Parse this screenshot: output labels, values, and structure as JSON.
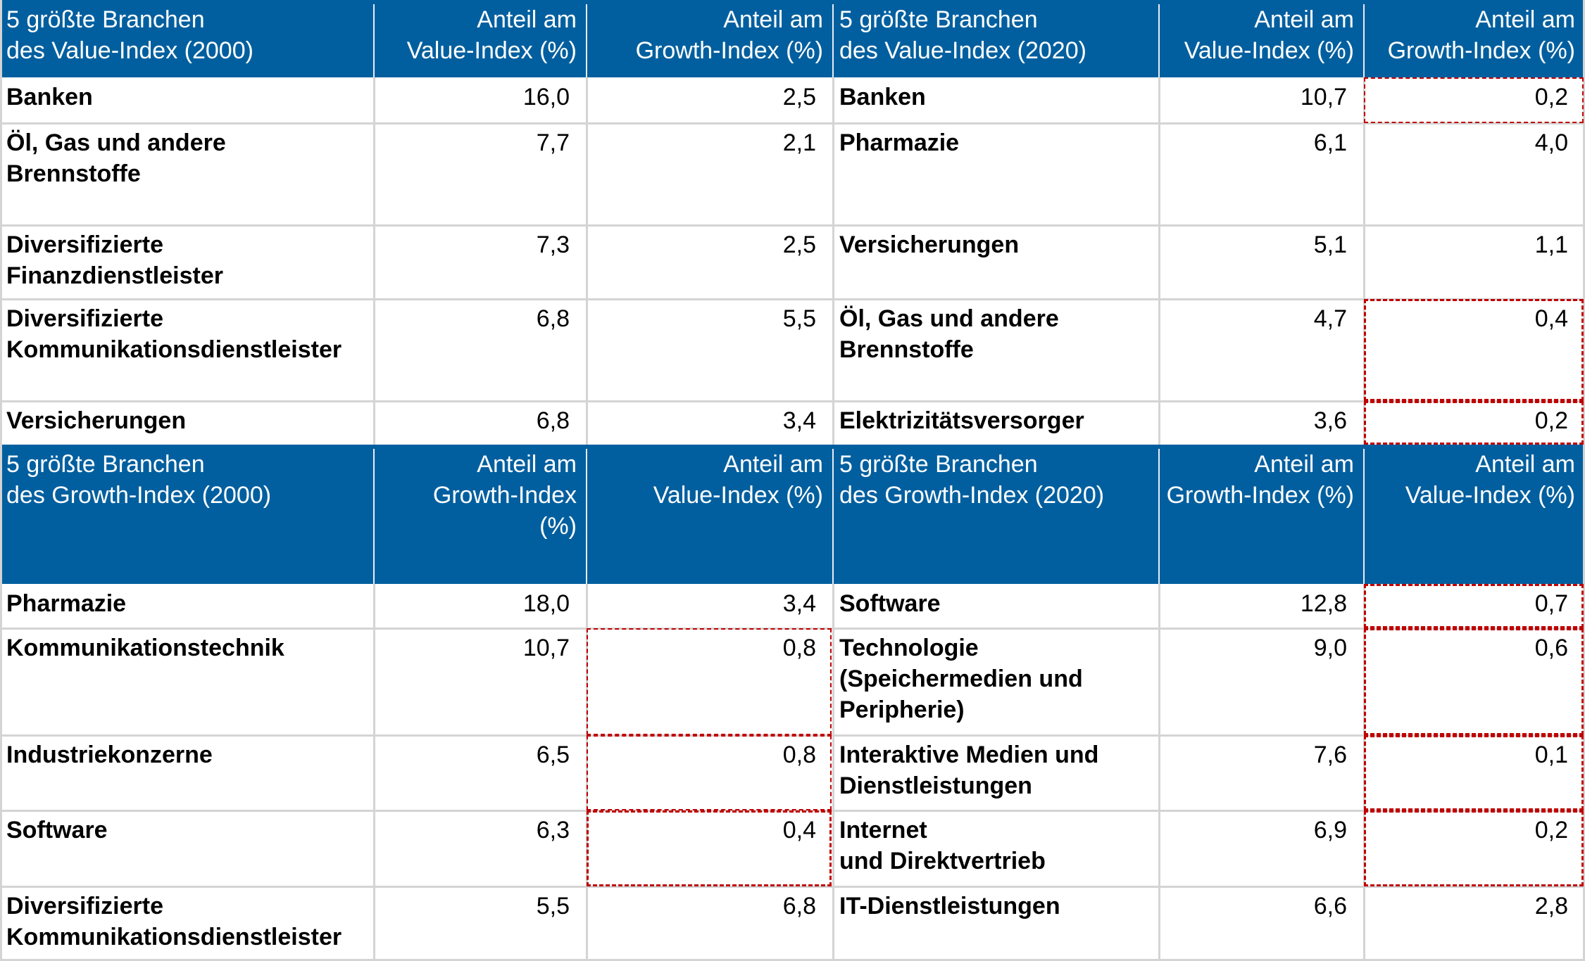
{
  "sections": [
    {
      "id": "value",
      "headers": {
        "left_title": "5 größte Branchen\ndes Value-Index (2000)",
        "left_col1": "Anteil am\nValue-Index (%)",
        "left_col2": "Anteil am\nGrowth-Index (%)",
        "right_title": "5 größte Branchen\ndes Value-Index (2020)",
        "right_col1": "Anteil am\nValue-Index (%)",
        "right_col2": "Anteil am\nGrowth-Index (%)"
      },
      "rows": [
        {
          "left_label": "Banken",
          "left_v1": "16,0",
          "left_v2": "2,5",
          "right_label": "Banken",
          "right_v1": "10,7",
          "right_v2": "0,2"
        },
        {
          "left_label": "Öl, Gas und andere\nBrennstoffe",
          "left_v1": "7,7",
          "left_v2": "2,1",
          "right_label": "Pharmazie",
          "right_v1": "6,1",
          "right_v2": "4,0"
        },
        {
          "left_label": "Diversifizierte\nFinanzdienstleister",
          "left_v1": "7,3",
          "left_v2": "2,5",
          "right_label": "Versicherungen",
          "right_v1": "5,1",
          "right_v2": "1,1"
        },
        {
          "left_label": "Diversifizierte\nKommunikationsdienstleister",
          "left_v1": "6,8",
          "left_v2": "5,5",
          "right_label": "Öl, Gas und andere\nBrennstoffe",
          "right_v1": "4,7",
          "right_v2": "0,4"
        },
        {
          "left_label": "Versicherungen",
          "left_v1": "6,8",
          "left_v2": "3,4",
          "right_label": "Elektrizitätsversorger",
          "right_v1": "3,6",
          "right_v2": "0,2"
        }
      ]
    },
    {
      "id": "growth",
      "headers": {
        "left_title": "5 größte Branchen\ndes Growth-Index (2000)",
        "left_col1": "Anteil am\nGrowth-Index\n(%)",
        "left_col2": "Anteil am\nValue-Index (%)",
        "right_title": "5 größte Branchen\ndes Growth-Index (2020)",
        "right_col1": "Anteil am\nGrowth-Index (%)",
        "right_col2": "Anteil am\nValue-Index (%)"
      },
      "rows": [
        {
          "left_label": "Pharmazie",
          "left_v1": "18,0",
          "left_v2": "3,4",
          "right_label": "Software",
          "right_v1": "12,8",
          "right_v2": "0,7"
        },
        {
          "left_label": "Kommunikationstechnik",
          "left_v1": "10,7",
          "left_v2": "0,8",
          "right_label": "Technologie\n(Speichermedien und\nPeripherie)",
          "right_v1": "9,0",
          "right_v2": "0,6"
        },
        {
          "left_label": "Industriekonzerne",
          "left_v1": "6,5",
          "left_v2": "0,8",
          "right_label": "Interaktive Medien und\nDienstleistungen",
          "right_v1": "7,6",
          "right_v2": "0,1"
        },
        {
          "left_label": "Software",
          "left_v1": "6,3",
          "left_v2": "0,4",
          "right_label": "Internet\nund Direktvertrieb",
          "right_v1": "6,9",
          "right_v2": "0,2"
        },
        {
          "left_label": "Diversifizierte\nKommunikationsdienstleister",
          "left_v1": "5,5",
          "left_v2": "6,8",
          "right_label": "IT-Dienstleistungen",
          "right_v1": "6,6",
          "right_v2": "2,8"
        }
      ]
    }
  ],
  "highlighted_cells": [
    "value.rows.0.right_v2",
    "value.rows.3.right_v2",
    "value.rows.4.right_v2",
    "growth.rows.1.left_v2",
    "growth.rows.2.left_v2",
    "growth.rows.3.left_v2",
    "growth.rows.0.right_v2",
    "growth.rows.1.right_v2",
    "growth.rows.2.right_v2",
    "growth.rows.3.right_v2"
  ],
  "colors": {
    "header_bg": "#025f9f",
    "header_text": "#ffffff",
    "grid_line": "#d4d4d4",
    "highlight_dash": "#c00000"
  }
}
